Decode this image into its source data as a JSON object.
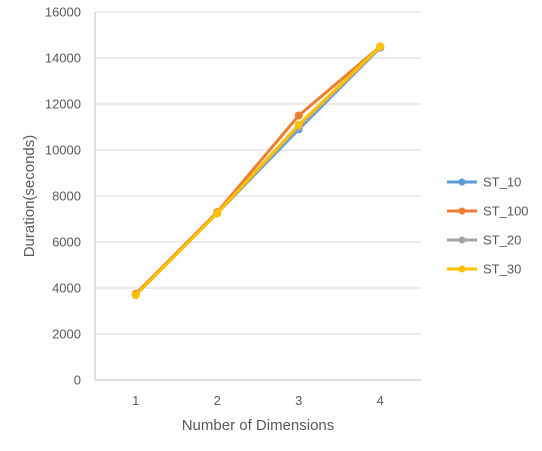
{
  "chart_data": {
    "type": "line",
    "title": "",
    "xlabel": "Number of Dimensions",
    "ylabel": "Duration(seconds)",
    "categories": [
      "1",
      "2",
      "3",
      "4"
    ],
    "ylim": [
      0,
      16000
    ],
    "yticks": [
      0,
      2000,
      4000,
      6000,
      8000,
      10000,
      12000,
      14000,
      16000
    ],
    "grid": true,
    "legend_position": "right",
    "series": [
      {
        "name": "ST_10",
        "color": "#5b9bd5",
        "values": [
          3700,
          7250,
          10900,
          14450
        ]
      },
      {
        "name": "ST_100",
        "color": "#ed7d31",
        "values": [
          3750,
          7300,
          11500,
          14500
        ]
      },
      {
        "name": "ST_20",
        "color": "#a5a5a5",
        "values": [
          3700,
          7250,
          11000,
          14450
        ]
      },
      {
        "name": "ST_30",
        "color": "#ffc000",
        "values": [
          3700,
          7250,
          11100,
          14500
        ]
      }
    ]
  }
}
